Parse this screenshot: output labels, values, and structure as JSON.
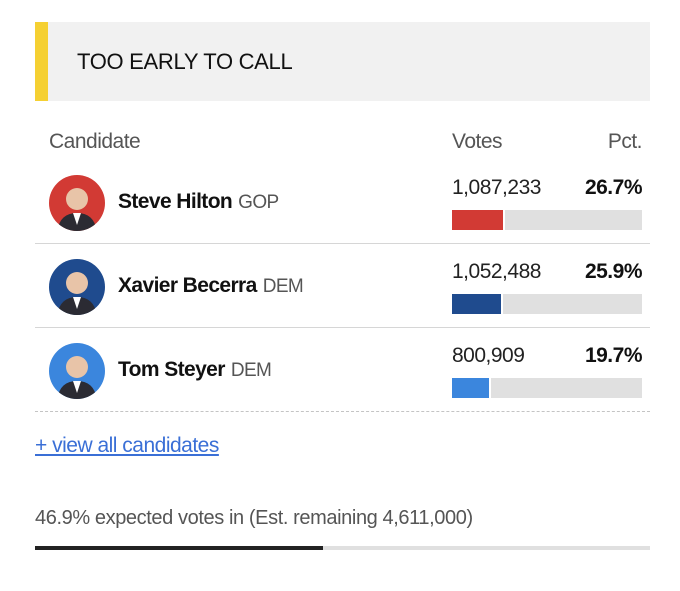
{
  "header": {
    "status": "TOO EARLY TO CALL"
  },
  "table": {
    "columns": [
      "Candidate",
      "Votes",
      "Pct."
    ],
    "rows": [
      {
        "name": "Steve Hilton",
        "party": "GOP",
        "votes": "1,087,233",
        "pct": 26.7,
        "pct_label": "26.7%",
        "color": "#d23a34"
      },
      {
        "name": "Xavier Becerra",
        "party": "DEM",
        "votes": "1,052,488",
        "pct": 25.9,
        "pct_label": "25.9%",
        "color": "#1f4b8e"
      },
      {
        "name": "Tom Steyer",
        "party": "DEM",
        "votes": "800,909",
        "pct": 19.7,
        "pct_label": "19.7%",
        "color": "#3b86dd"
      }
    ]
  },
  "link": "+ view all candidates",
  "footer": {
    "expected_pct": 46.9,
    "expected_label": "46.9%",
    "text": "expected votes in (Est. remaining 4,611,000)"
  }
}
